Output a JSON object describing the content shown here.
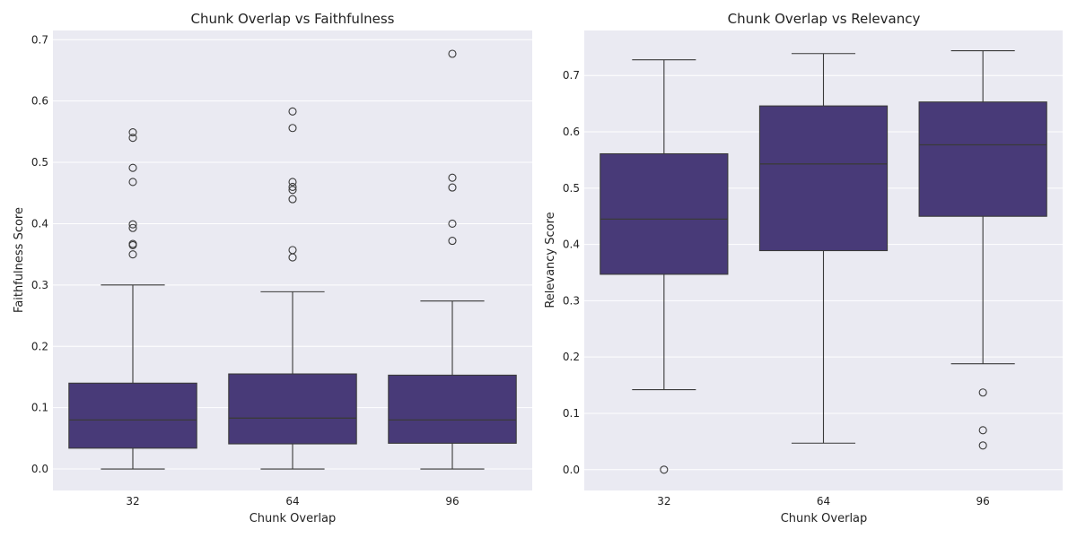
{
  "chart_data": [
    {
      "type": "box",
      "title": "Chunk Overlap vs Faithfulness",
      "xlabel": "Chunk Overlap",
      "ylabel": "Faithfulness Score",
      "categories": [
        "32",
        "64",
        "96"
      ],
      "ylim": [
        -0.035,
        0.715
      ],
      "yticks": [
        "0.0",
        "0.1",
        "0.2",
        "0.3",
        "0.4",
        "0.5",
        "0.6",
        "0.7"
      ],
      "grid": true,
      "color": "#483a78",
      "boxes": [
        {
          "whisker_low": 0.0,
          "q1": 0.034,
          "median": 0.08,
          "q3": 0.14,
          "whisker_high": 0.3,
          "outliers": [
            0.35,
            0.365,
            0.367,
            0.393,
            0.399,
            0.468,
            0.491,
            0.54,
            0.549
          ]
        },
        {
          "whisker_low": 0.0,
          "q1": 0.041,
          "median": 0.083,
          "q3": 0.155,
          "whisker_high": 0.289,
          "outliers": [
            0.345,
            0.357,
            0.44,
            0.455,
            0.46,
            0.468,
            0.556,
            0.583
          ]
        },
        {
          "whisker_low": 0.0,
          "q1": 0.042,
          "median": 0.08,
          "q3": 0.153,
          "whisker_high": 0.274,
          "outliers": [
            0.372,
            0.4,
            0.459,
            0.475,
            0.677
          ]
        }
      ]
    },
    {
      "type": "box",
      "title": "Chunk Overlap vs Relevancy",
      "xlabel": "Chunk Overlap",
      "ylabel": "Relevancy Score",
      "categories": [
        "32",
        "64",
        "96"
      ],
      "ylim": [
        -0.037,
        0.78
      ],
      "yticks": [
        "0.0",
        "0.1",
        "0.2",
        "0.3",
        "0.4",
        "0.5",
        "0.6",
        "0.7"
      ],
      "grid": true,
      "color": "#483a78",
      "boxes": [
        {
          "whisker_low": 0.142,
          "q1": 0.347,
          "median": 0.445,
          "q3": 0.561,
          "whisker_high": 0.728,
          "outliers": [
            0.0
          ]
        },
        {
          "whisker_low": 0.047,
          "q1": 0.389,
          "median": 0.543,
          "q3": 0.646,
          "whisker_high": 0.739,
          "outliers": []
        },
        {
          "whisker_low": 0.188,
          "q1": 0.45,
          "median": 0.577,
          "q3": 0.653,
          "whisker_high": 0.744,
          "outliers": [
            0.043,
            0.07,
            0.137
          ]
        }
      ]
    }
  ]
}
